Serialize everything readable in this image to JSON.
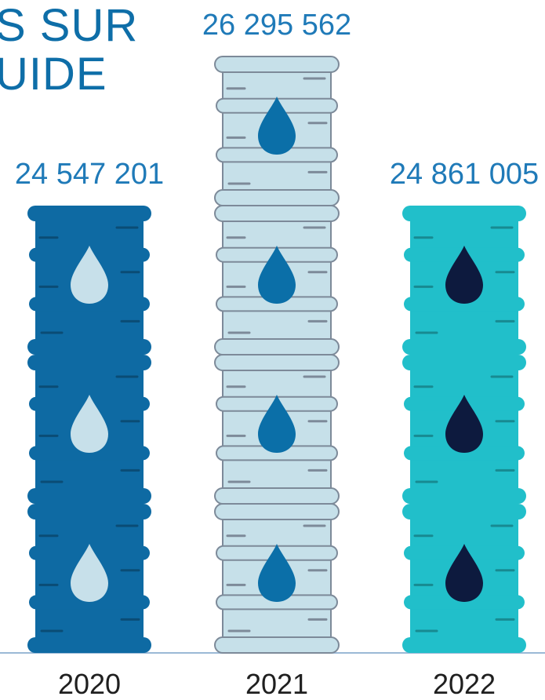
{
  "title_lines": [
    "S SUR",
    "UIDE"
  ],
  "colors": {
    "title": "#0e6ea8",
    "value_label": "#1f7ab8",
    "year_label": "#1f1f1f",
    "axis": "#9bb9d6"
  },
  "chart_data": {
    "type": "bar",
    "icon": "oil-barrel-icon",
    "categories": [
      "2020",
      "2021",
      "2022"
    ],
    "values": [
      24547201,
      26295562,
      24861005
    ],
    "value_labels": [
      "24 547 201",
      "26 295 562",
      "24 861 005"
    ],
    "barrels_shown": [
      3,
      4,
      3
    ],
    "series_colors": [
      {
        "body": "#0e6aa3",
        "drop": "#c7e0ea"
      },
      {
        "body": "#c6e0e9",
        "drop": "#0b6fa8"
      },
      {
        "body": "#21bfca",
        "drop": "#0d1a3e"
      }
    ]
  }
}
